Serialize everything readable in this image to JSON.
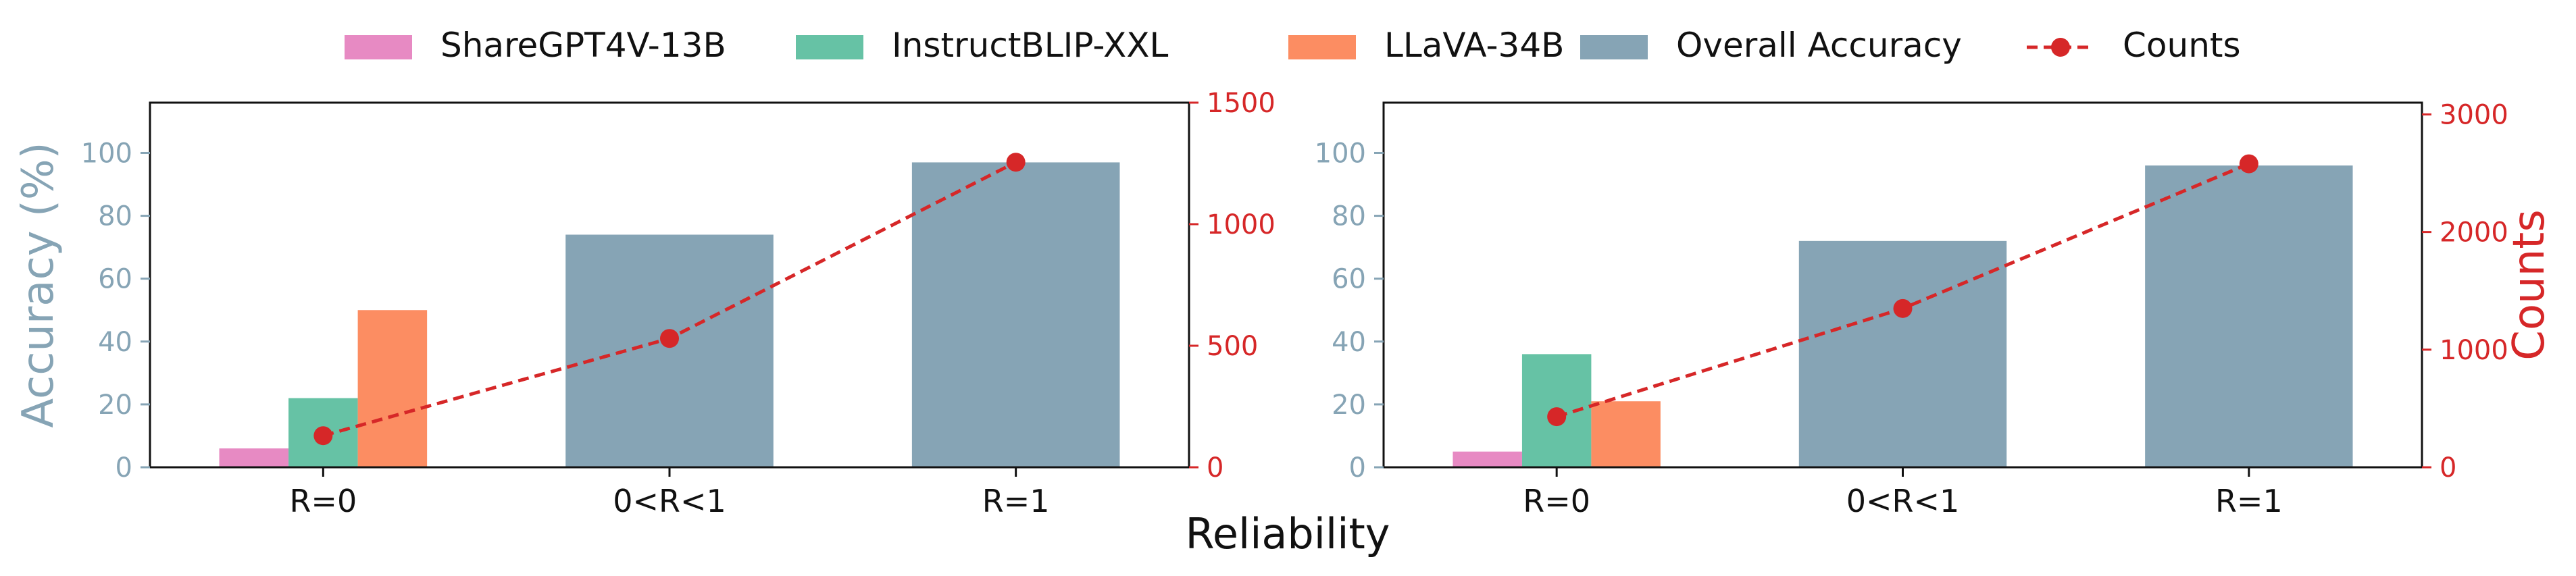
{
  "legend": [
    {
      "label": "ShareGPT4V-13B",
      "kind": "bar",
      "color": "#e78ac3"
    },
    {
      "label": "InstructBLIP-XXL",
      "kind": "bar",
      "color": "#66c2a5"
    },
    {
      "label": "LLaVA-34B",
      "kind": "bar",
      "color": "#fc8d62"
    },
    {
      "label": "Overall Accuracy",
      "kind": "bar",
      "color": "#86a4b5"
    },
    {
      "label": "Counts",
      "kind": "line",
      "color": "#d62728"
    }
  ],
  "figure_xlabel": "Reliability",
  "colors": {
    "accuracy_axis": "#86a4b5",
    "counts_axis": "#d62728",
    "overall_bar": "#86a4b5",
    "counts_line": "#d62728"
  },
  "chart_data": [
    {
      "type": "bar",
      "categories": [
        "R=0",
        "0<R<1",
        "R=1"
      ],
      "model_series": [
        {
          "name": "ShareGPT4V-13B",
          "category": "R=0",
          "value": 6
        },
        {
          "name": "InstructBLIP-XXL",
          "category": "R=0",
          "value": 22
        },
        {
          "name": "LLaVA-34B",
          "category": "R=0",
          "value": 50
        }
      ],
      "overall_accuracy": [
        null,
        74,
        97
      ],
      "counts": [
        130,
        530,
        1255
      ],
      "ylabel": "Accuracy (%)",
      "y2label": "",
      "ylim": [
        0,
        116
      ],
      "y2lim": [
        0,
        1500
      ],
      "yticks": [
        0,
        20,
        40,
        60,
        80,
        100
      ],
      "y2ticks": [
        0,
        500,
        1000,
        1500
      ]
    },
    {
      "type": "bar",
      "categories": [
        "R=0",
        "0<R<1",
        "R=1"
      ],
      "model_series": [
        {
          "name": "ShareGPT4V-13B",
          "category": "R=0",
          "value": 5
        },
        {
          "name": "InstructBLIP-XXL",
          "category": "R=0",
          "value": 36
        },
        {
          "name": "LLaVA-34B",
          "category": "R=0",
          "value": 21
        }
      ],
      "overall_accuracy": [
        null,
        72,
        96
      ],
      "counts": [
        430,
        1350,
        2580
      ],
      "ylabel": "",
      "y2label": "Counts",
      "ylim": [
        0,
        116
      ],
      "y2lim": [
        0,
        3100
      ],
      "yticks": [
        0,
        20,
        40,
        60,
        80,
        100
      ],
      "y2ticks": [
        0,
        1000,
        2000,
        3000
      ]
    }
  ]
}
